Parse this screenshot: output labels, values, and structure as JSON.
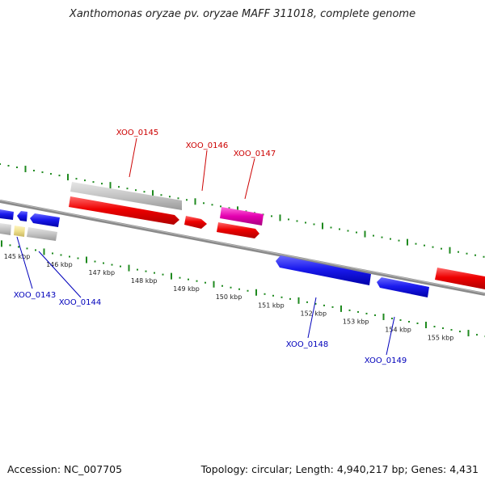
{
  "title": "Xanthomonas oryzae pv. oryzae MAFF 311018, complete genome",
  "footer": {
    "accession": "Accession: NC_007705",
    "topology": "Topology: circular; Length: 4,940,217 bp; Genes: 4,431"
  },
  "colors": {
    "backbone": "#7f7f7f",
    "forward_gene": "#ee0000",
    "reverse_gene": "#1a1aee",
    "pseudo_gene": "#bdbdbd",
    "magenta_gene": "#e400b0",
    "yellow_gene": "#eedf8c",
    "ruler": "#1f8a1f",
    "label_forward": "#cc0000",
    "label_reverse": "#0000bb"
  },
  "ruler": {
    "unit": "kbp",
    "ticks": [
      "145 kbp",
      "146 kbp",
      "147 kbp",
      "148 kbp",
      "149 kbp",
      "150 kbp",
      "151 kbp",
      "152 kbp",
      "153 kbp",
      "154 kbp",
      "155 kbp"
    ]
  },
  "genes": [
    {
      "id": "XOO_0143",
      "strand": "reverse"
    },
    {
      "id": "XOO_0144",
      "strand": "reverse"
    },
    {
      "id": "XOO_0145",
      "strand": "forward"
    },
    {
      "id": "XOO_0146",
      "strand": "forward"
    },
    {
      "id": "XOO_0147",
      "strand": "forward"
    },
    {
      "id": "XOO_0148",
      "strand": "reverse"
    },
    {
      "id": "XOO_0149",
      "strand": "reverse"
    }
  ]
}
